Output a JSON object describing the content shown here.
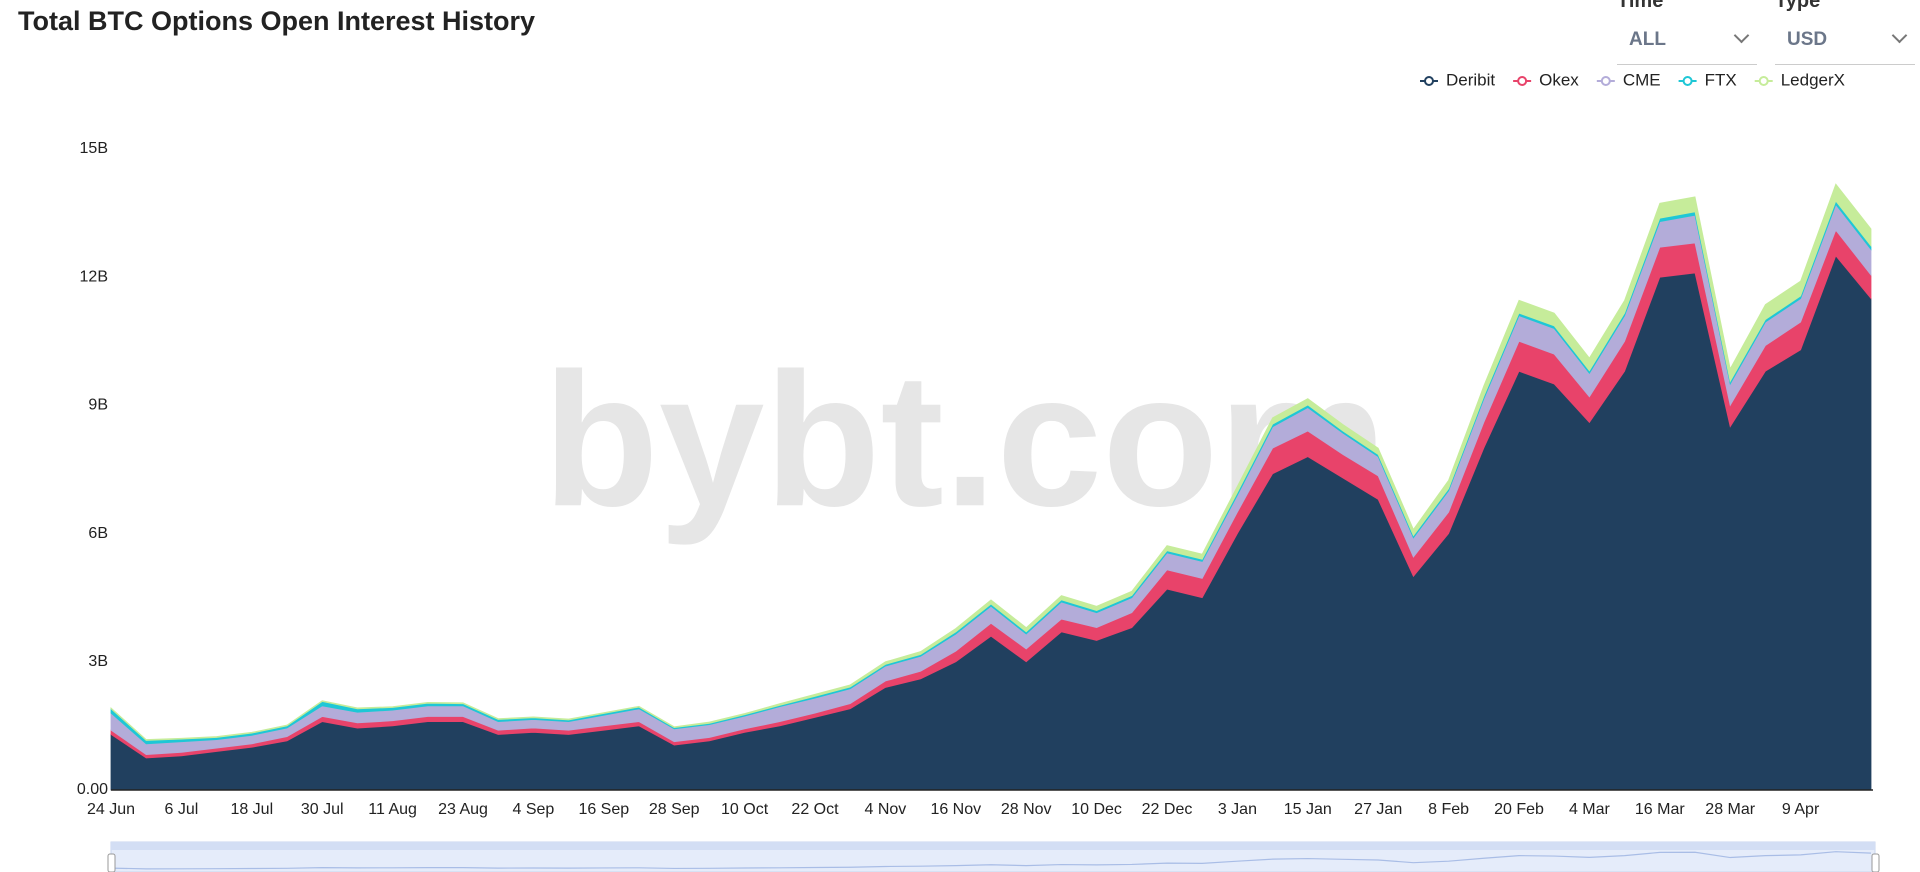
{
  "controls": {
    "time_label": "Time",
    "time_value": "ALL",
    "type_label": "Type",
    "type_value": "USD"
  },
  "chart_data": {
    "type": "stacked_area",
    "title": "Total BTC Options Open Interest History",
    "watermark": "bybt.com",
    "legend": "top-right",
    "grid": false,
    "categories": [
      "24 Jun",
      null,
      "6 Jul",
      null,
      "18 Jul",
      null,
      "30 Jul",
      null,
      "11 Aug",
      null,
      "23 Aug",
      null,
      "4 Sep",
      null,
      "16 Sep",
      null,
      "28 Sep",
      null,
      "10 Oct",
      null,
      "22 Oct",
      null,
      "4 Nov",
      null,
      "16 Nov",
      null,
      "28 Nov",
      null,
      "10 Dec",
      null,
      "22 Dec",
      null,
      "3 Jan",
      null,
      "15 Jan",
      null,
      "27 Jan",
      null,
      "8 Feb",
      null,
      "20 Feb",
      null,
      "4 Mar",
      null,
      "16 Mar",
      null,
      "28 Mar",
      null,
      "9 Apr",
      null,
      null
    ],
    "ylim": [
      0,
      15
    ],
    "yticks": [
      {
        "value": 0,
        "label": "0.00"
      },
      {
        "value": 3,
        "label": "3B"
      },
      {
        "value": 6,
        "label": "6B"
      },
      {
        "value": 9,
        "label": "9B"
      },
      {
        "value": 12,
        "label": "12B"
      },
      {
        "value": 15,
        "label": "15B"
      }
    ],
    "series": [
      {
        "name": "Deribit",
        "color": "#21405f",
        "values": [
          1.3,
          0.75,
          0.8,
          0.9,
          1.0,
          1.15,
          1.6,
          1.45,
          1.5,
          1.6,
          1.6,
          1.3,
          1.35,
          1.3,
          1.4,
          1.5,
          1.05,
          1.15,
          1.35,
          1.5,
          1.7,
          1.9,
          2.4,
          2.6,
          3.0,
          3.6,
          3.0,
          3.7,
          3.5,
          3.8,
          4.7,
          4.5,
          6.0,
          7.4,
          7.8,
          7.3,
          6.8,
          5.0,
          6.0,
          8.0,
          9.8,
          9.5,
          8.6,
          9.8,
          12.0,
          12.1,
          8.5,
          9.8,
          10.3,
          12.5,
          11.5
        ]
      },
      {
        "name": "Okex",
        "color": "#e8436a",
        "values": [
          0.1,
          0.08,
          0.08,
          0.08,
          0.08,
          0.1,
          0.12,
          0.12,
          0.12,
          0.12,
          0.12,
          0.1,
          0.1,
          0.1,
          0.1,
          0.1,
          0.08,
          0.08,
          0.08,
          0.1,
          0.1,
          0.12,
          0.15,
          0.18,
          0.25,
          0.3,
          0.3,
          0.3,
          0.3,
          0.35,
          0.45,
          0.45,
          0.5,
          0.6,
          0.6,
          0.55,
          0.55,
          0.45,
          0.5,
          0.6,
          0.7,
          0.7,
          0.6,
          0.7,
          0.7,
          0.7,
          0.5,
          0.6,
          0.65,
          0.6,
          0.55
        ]
      },
      {
        "name": "CME",
        "color": "#b3acd9",
        "values": [
          0.4,
          0.25,
          0.25,
          0.2,
          0.2,
          0.2,
          0.25,
          0.25,
          0.25,
          0.25,
          0.25,
          0.2,
          0.2,
          0.2,
          0.25,
          0.3,
          0.3,
          0.3,
          0.3,
          0.35,
          0.35,
          0.35,
          0.35,
          0.35,
          0.4,
          0.4,
          0.35,
          0.4,
          0.35,
          0.35,
          0.4,
          0.4,
          0.4,
          0.5,
          0.55,
          0.5,
          0.45,
          0.45,
          0.5,
          0.55,
          0.6,
          0.6,
          0.55,
          0.6,
          0.6,
          0.65,
          0.5,
          0.55,
          0.55,
          0.6,
          0.6
        ]
      },
      {
        "name": "FTX",
        "color": "#1ec7d6",
        "values": [
          0.1,
          0.08,
          0.06,
          0.05,
          0.05,
          0.05,
          0.1,
          0.08,
          0.06,
          0.06,
          0.05,
          0.05,
          0.04,
          0.04,
          0.04,
          0.04,
          0.03,
          0.03,
          0.03,
          0.03,
          0.04,
          0.04,
          0.04,
          0.04,
          0.05,
          0.05,
          0.05,
          0.05,
          0.05,
          0.05,
          0.05,
          0.05,
          0.06,
          0.06,
          0.06,
          0.05,
          0.05,
          0.05,
          0.05,
          0.06,
          0.06,
          0.06,
          0.06,
          0.06,
          0.08,
          0.08,
          0.06,
          0.06,
          0.06,
          0.08,
          0.08
        ]
      },
      {
        "name": "LedgerX",
        "color": "#c6ec9a",
        "values": [
          0.02,
          0.02,
          0.02,
          0.02,
          0.02,
          0.02,
          0.02,
          0.02,
          0.02,
          0.02,
          0.02,
          0.02,
          0.02,
          0.02,
          0.02,
          0.02,
          0.02,
          0.03,
          0.03,
          0.04,
          0.05,
          0.05,
          0.06,
          0.07,
          0.08,
          0.1,
          0.1,
          0.1,
          0.1,
          0.1,
          0.12,
          0.12,
          0.15,
          0.15,
          0.15,
          0.15,
          0.15,
          0.15,
          0.2,
          0.25,
          0.3,
          0.3,
          0.3,
          0.3,
          0.35,
          0.35,
          0.3,
          0.35,
          0.35,
          0.4,
          0.4
        ]
      }
    ]
  }
}
